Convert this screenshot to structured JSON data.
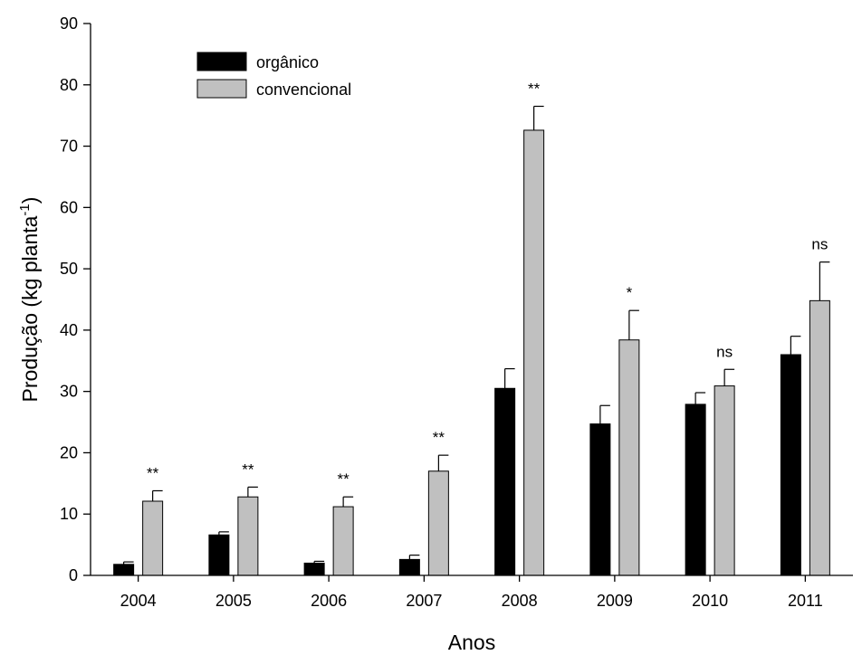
{
  "chart_data": {
    "type": "bar",
    "title": "",
    "xlabel": "Anos",
    "ylabel": "Produção (kg planta",
    "ylabel_superscript": "-1",
    "ylabel_close": ")",
    "ylim": [
      0,
      90
    ],
    "yticks": [
      "0",
      "10",
      "20",
      "30",
      "40",
      "50",
      "60",
      "70",
      "80",
      "90"
    ],
    "categories": [
      "2004",
      "2005",
      "2006",
      "2007",
      "2008",
      "2009",
      "2010",
      "2011"
    ],
    "series": [
      {
        "name": "orgânico",
        "color": "#000000",
        "values": [
          1.8,
          6.6,
          2.0,
          2.6,
          30.5,
          24.7,
          27.9,
          36.0
        ],
        "errors": [
          0.4,
          0.5,
          0.3,
          0.7,
          3.2,
          3.0,
          1.9,
          3.0
        ]
      },
      {
        "name": "convencional",
        "color": "#c0c0c0",
        "values": [
          12.1,
          12.8,
          11.2,
          17.0,
          72.6,
          38.4,
          30.9,
          44.8
        ],
        "errors": [
          1.7,
          1.6,
          1.6,
          2.6,
          3.9,
          4.8,
          2.7,
          6.3
        ]
      }
    ],
    "significance": [
      "**",
      "**",
      "**",
      "**",
      "**",
      "*",
      "ns",
      "ns"
    ],
    "legend_position": "top-left",
    "grid": false
  }
}
